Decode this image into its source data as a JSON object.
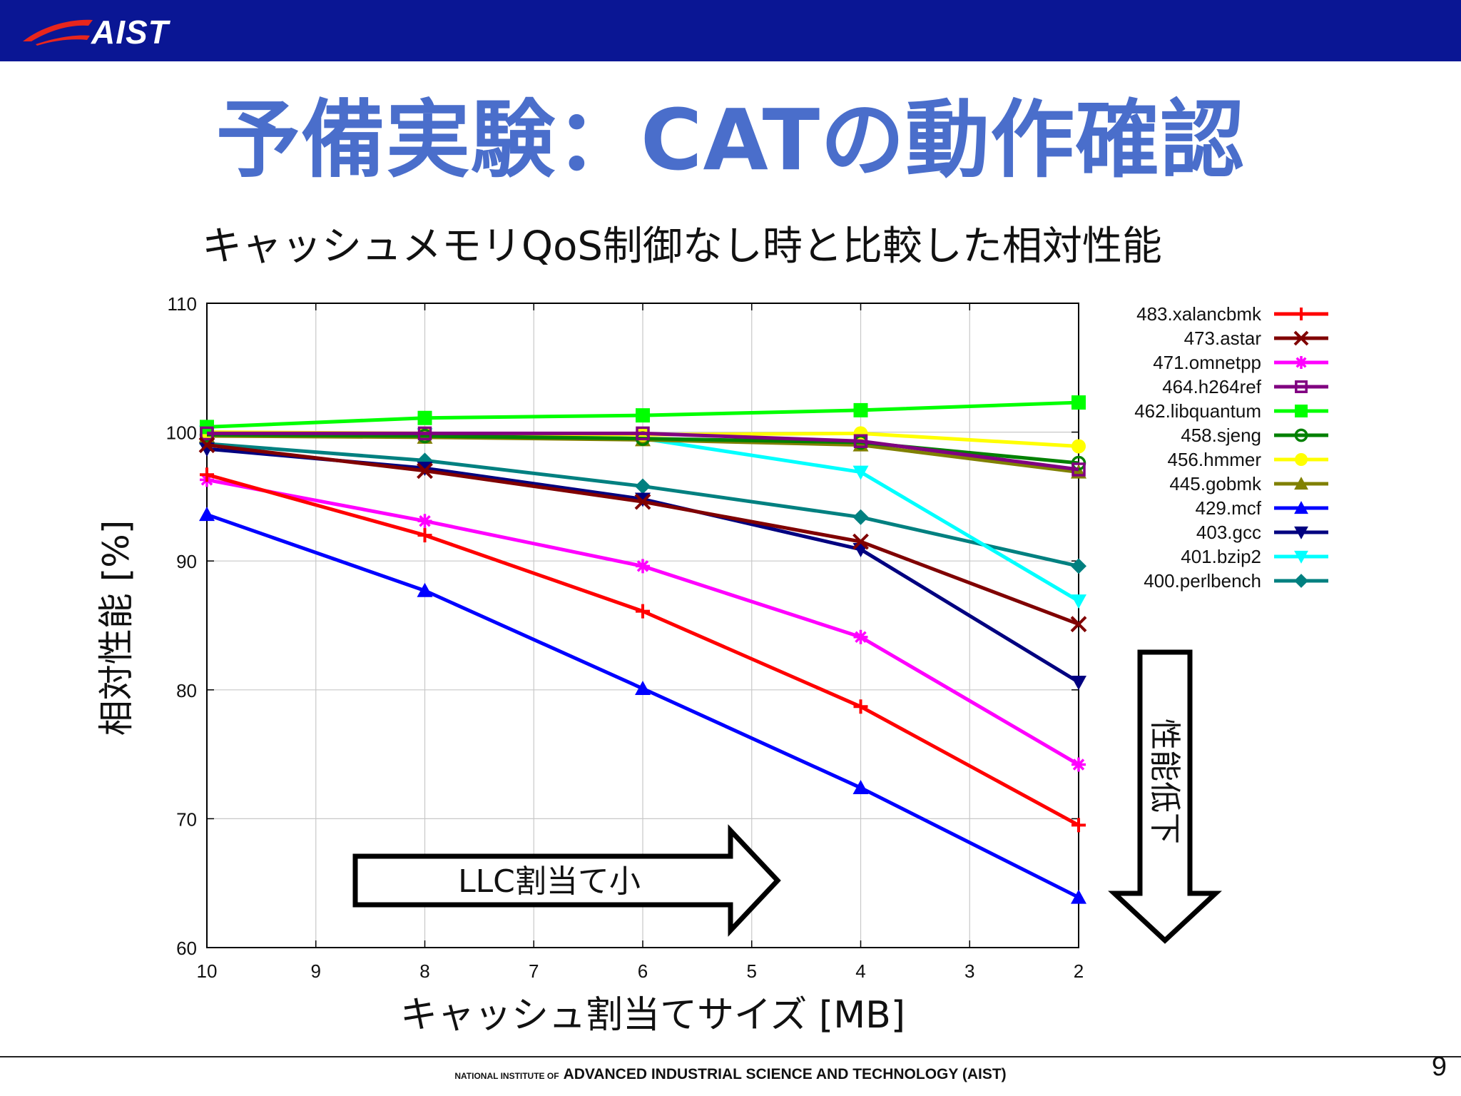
{
  "header": {
    "logo_text": "AIST",
    "brand_color": "#0a1694"
  },
  "slide": {
    "title": "予備実験：CATの動作確認",
    "subtitle": "キャッシュメモリQoS制御なし時と比較した相対性能",
    "page_number": "9"
  },
  "footer": {
    "small": "NATIONAL INSTITUTE OF",
    "main": "ADVANCED INDUSTRIAL SCIENCE AND TECHNOLOGY (AIST)"
  },
  "annotations": {
    "llc_arrow": "LLC割当て小",
    "perf_arrow": "性能低下"
  },
  "chart_data": {
    "type": "line",
    "title": "",
    "xlabel": "キャッシュ割当てサイズ [MB]",
    "ylabel": "相対性能 [%]",
    "xlim": [
      10,
      2
    ],
    "ylim": [
      60,
      110
    ],
    "xticks": [
      10,
      9,
      8,
      7,
      6,
      5,
      4,
      3,
      2
    ],
    "yticks": [
      60,
      70,
      80,
      90,
      100,
      110
    ],
    "grid": true,
    "legend_position": "right",
    "x": [
      10,
      8,
      6,
      4,
      2
    ],
    "series": [
      {
        "name": "483.xalancbmk",
        "color": "#ff0000",
        "marker": "plus",
        "values": [
          96.7,
          92.0,
          86.1,
          78.7,
          69.5
        ]
      },
      {
        "name": "473.astar",
        "color": "#800000",
        "marker": "x",
        "values": [
          99.0,
          97.0,
          94.6,
          91.5,
          85.1
        ]
      },
      {
        "name": "471.omnetpp",
        "color": "#ff00ff",
        "marker": "star",
        "values": [
          96.3,
          93.1,
          89.6,
          84.1,
          74.2
        ]
      },
      {
        "name": "464.h264ref",
        "color": "#800080",
        "marker": "square-open",
        "values": [
          99.9,
          99.9,
          99.9,
          99.3,
          97.1
        ]
      },
      {
        "name": "462.libquantum",
        "color": "#00ff00",
        "marker": "square",
        "values": [
          100.4,
          101.1,
          101.3,
          101.7,
          102.3
        ]
      },
      {
        "name": "458.sjeng",
        "color": "#008000",
        "marker": "circle-open",
        "values": [
          99.8,
          99.7,
          99.5,
          99.2,
          97.6
        ]
      },
      {
        "name": "456.hmmer",
        "color": "#ffff00",
        "marker": "circle",
        "values": [
          100.0,
          99.9,
          99.8,
          99.9,
          98.9
        ]
      },
      {
        "name": "445.gobmk",
        "color": "#808000",
        "marker": "triangle-up",
        "values": [
          99.7,
          99.6,
          99.4,
          99.0,
          96.9
        ]
      },
      {
        "name": "429.mcf",
        "color": "#0000ff",
        "marker": "triangle-up",
        "values": [
          93.6,
          87.7,
          80.1,
          72.4,
          63.9
        ]
      },
      {
        "name": "403.gcc",
        "color": "#000080",
        "marker": "triangle-down",
        "values": [
          98.7,
          97.2,
          94.8,
          90.9,
          80.6
        ]
      },
      {
        "name": "401.bzip2",
        "color": "#00ffff",
        "marker": "triangle-down",
        "values": [
          100.0,
          99.8,
          99.5,
          96.9,
          86.9
        ]
      },
      {
        "name": "400.perlbench",
        "color": "#008080",
        "marker": "diamond",
        "values": [
          99.1,
          97.8,
          95.8,
          93.4,
          89.6
        ]
      }
    ]
  }
}
